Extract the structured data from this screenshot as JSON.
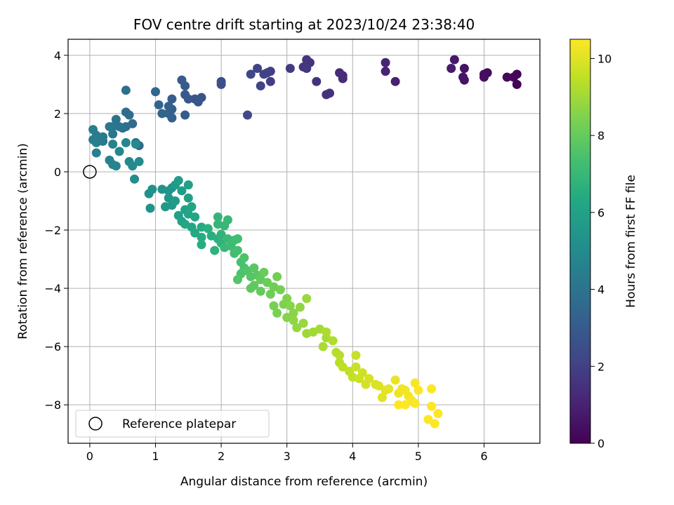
{
  "chart_data": {
    "type": "scatter",
    "title": "FOV centre drift starting at 2023/10/24 23:38:40",
    "xlabel": "Angular distance from reference (arcmin)",
    "ylabel": "Rotation from reference (arcmin)",
    "xlim": [
      -0.33,
      6.85
    ],
    "ylim": [
      -9.32,
      4.55
    ],
    "xticks": [
      0,
      1,
      2,
      3,
      4,
      5,
      6
    ],
    "yticks": [
      -8,
      -6,
      -4,
      -2,
      0,
      2,
      4
    ],
    "grid": true,
    "legend": {
      "placement": "lower-left",
      "entries": [
        "Reference platepar"
      ]
    },
    "reference_point": {
      "x": 0,
      "y": 0,
      "label": "Reference platepar"
    },
    "colorbar": {
      "label": "Hours from first FF file",
      "min": 0,
      "max": 10.5,
      "ticks": [
        0,
        2,
        4,
        6,
        8,
        10
      ],
      "colormap": "viridis"
    },
    "points": [
      [
        6.5,
        3.0,
        0.05
      ],
      [
        6.45,
        3.25,
        0.15
      ],
      [
        6.5,
        3.35,
        0.1
      ],
      [
        6.35,
        3.25,
        0.2
      ],
      [
        6.05,
        3.4,
        0.3
      ],
      [
        6.0,
        3.35,
        0.35
      ],
      [
        6.0,
        3.25,
        0.4
      ],
      [
        5.7,
        3.55,
        0.5
      ],
      [
        5.7,
        3.15,
        0.55
      ],
      [
        5.68,
        3.25,
        0.6
      ],
      [
        5.55,
        3.85,
        0.7
      ],
      [
        5.5,
        3.55,
        0.75
      ],
      [
        4.65,
        3.1,
        0.95
      ],
      [
        4.5,
        3.45,
        1.0
      ],
      [
        4.5,
        3.75,
        1.05
      ],
      [
        3.85,
        3.3,
        1.2
      ],
      [
        3.8,
        3.4,
        1.25
      ],
      [
        3.85,
        3.2,
        1.3
      ],
      [
        3.65,
        2.7,
        1.4
      ],
      [
        3.6,
        2.65,
        1.45
      ],
      [
        3.45,
        3.1,
        1.5
      ],
      [
        3.35,
        3.75,
        1.55
      ],
      [
        3.3,
        3.85,
        1.6
      ],
      [
        3.25,
        3.6,
        1.65
      ],
      [
        3.3,
        3.55,
        1.7
      ],
      [
        3.05,
        3.55,
        1.8
      ],
      [
        2.75,
        3.1,
        1.9
      ],
      [
        2.75,
        3.45,
        1.95
      ],
      [
        2.65,
        3.35,
        2.0
      ],
      [
        2.7,
        3.4,
        2.05
      ],
      [
        2.6,
        2.95,
        2.1
      ],
      [
        2.55,
        3.55,
        2.15
      ],
      [
        2.45,
        3.35,
        2.2
      ],
      [
        2.4,
        1.95,
        2.3
      ],
      [
        2.0,
        3.1,
        2.5
      ],
      [
        2.0,
        3.0,
        2.55
      ],
      [
        1.7,
        2.55,
        2.7
      ],
      [
        1.65,
        2.4,
        2.75
      ],
      [
        1.6,
        2.5,
        2.8
      ],
      [
        1.5,
        2.5,
        2.85
      ],
      [
        1.45,
        2.65,
        2.9
      ],
      [
        1.45,
        2.95,
        2.95
      ],
      [
        1.4,
        3.15,
        3.0
      ],
      [
        1.45,
        1.95,
        3.05
      ],
      [
        1.25,
        2.5,
        3.1
      ],
      [
        1.25,
        2.15,
        3.15
      ],
      [
        1.2,
        2.25,
        3.2
      ],
      [
        1.25,
        1.85,
        3.25
      ],
      [
        1.2,
        2.0,
        3.3
      ],
      [
        1.1,
        2.0,
        3.35
      ],
      [
        1.05,
        2.3,
        3.4
      ],
      [
        1.0,
        2.75,
        3.45
      ],
      [
        0.75,
        0.9,
        3.55
      ],
      [
        0.7,
        1.0,
        3.6
      ],
      [
        0.65,
        1.65,
        3.65
      ],
      [
        0.6,
        1.95,
        3.7
      ],
      [
        0.55,
        2.05,
        3.75
      ],
      [
        0.55,
        2.8,
        3.8
      ],
      [
        0.55,
        1.55,
        3.85
      ],
      [
        0.5,
        1.5,
        3.9
      ],
      [
        0.45,
        1.55,
        3.95
      ],
      [
        0.4,
        1.8,
        4.0
      ],
      [
        0.35,
        1.3,
        4.05
      ],
      [
        0.35,
        1.55,
        4.1
      ],
      [
        0.3,
        1.55,
        4.15
      ],
      [
        0.2,
        1.05,
        4.2
      ],
      [
        0.15,
        1.1,
        4.25
      ],
      [
        0.2,
        1.2,
        4.3
      ],
      [
        0.1,
        1.25,
        4.35
      ],
      [
        0.05,
        1.45,
        4.4
      ],
      [
        0.05,
        1.1,
        4.45
      ],
      [
        0.1,
        1.0,
        4.5
      ],
      [
        0.1,
        0.65,
        4.55
      ],
      [
        0.35,
        0.95,
        4.6
      ],
      [
        0.3,
        0.4,
        4.65
      ],
      [
        0.35,
        0.25,
        4.7
      ],
      [
        0.4,
        0.2,
        4.75
      ],
      [
        0.45,
        0.7,
        4.8
      ],
      [
        0.55,
        1.0,
        4.85
      ],
      [
        0.6,
        0.35,
        4.9
      ],
      [
        0.65,
        0.2,
        4.95
      ],
      [
        0.7,
        0.95,
        5.0
      ],
      [
        0.75,
        0.35,
        5.05
      ],
      [
        0.68,
        -0.25,
        5.1
      ],
      [
        0.9,
        -0.75,
        5.2
      ],
      [
        0.95,
        -0.6,
        5.25
      ],
      [
        0.92,
        -1.25,
        5.3
      ],
      [
        1.1,
        -0.6,
        5.35
      ],
      [
        1.2,
        -0.65,
        5.4
      ],
      [
        1.25,
        -0.55,
        5.45
      ],
      [
        1.2,
        -0.9,
        5.5
      ],
      [
        1.15,
        -1.2,
        5.55
      ],
      [
        1.25,
        -1.15,
        5.6
      ],
      [
        1.3,
        -1.0,
        5.65
      ],
      [
        1.3,
        -0.45,
        5.7
      ],
      [
        1.35,
        -0.3,
        5.75
      ],
      [
        1.4,
        -0.65,
        5.8
      ],
      [
        1.5,
        -0.9,
        5.85
      ],
      [
        1.5,
        -0.45,
        5.9
      ],
      [
        1.35,
        -1.5,
        5.95
      ],
      [
        1.45,
        -1.3,
        6.0
      ],
      [
        1.4,
        -1.7,
        6.05
      ],
      [
        1.5,
        -1.45,
        6.1
      ],
      [
        1.55,
        -1.2,
        6.15
      ],
      [
        1.6,
        -1.55,
        6.2
      ],
      [
        1.45,
        -1.8,
        6.25
      ],
      [
        1.55,
        -1.9,
        6.3
      ],
      [
        1.6,
        -2.1,
        6.35
      ],
      [
        1.7,
        -1.9,
        6.4
      ],
      [
        1.7,
        -2.25,
        6.45
      ],
      [
        1.7,
        -2.5,
        6.5
      ],
      [
        1.85,
        -2.2,
        6.55
      ],
      [
        1.8,
        -1.95,
        6.6
      ],
      [
        1.95,
        -2.3,
        6.65
      ],
      [
        1.9,
        -2.7,
        6.7
      ],
      [
        2.0,
        -2.45,
        6.75
      ],
      [
        2.0,
        -2.15,
        6.8
      ],
      [
        1.95,
        -1.55,
        6.85
      ],
      [
        1.95,
        -1.8,
        6.9
      ],
      [
        2.05,
        -1.85,
        6.95
      ],
      [
        2.1,
        -1.65,
        7.0
      ],
      [
        2.05,
        -2.6,
        7.05
      ],
      [
        2.1,
        -2.3,
        7.1
      ],
      [
        2.15,
        -2.55,
        7.15
      ],
      [
        2.2,
        -2.35,
        7.2
      ],
      [
        2.25,
        -2.3,
        7.25
      ],
      [
        2.2,
        -2.8,
        7.3
      ],
      [
        2.25,
        -2.7,
        7.35
      ],
      [
        2.3,
        -3.1,
        7.4
      ],
      [
        2.35,
        -3.3,
        7.45
      ],
      [
        2.35,
        -2.95,
        7.5
      ],
      [
        2.3,
        -3.5,
        7.55
      ],
      [
        2.4,
        -3.4,
        7.6
      ],
      [
        2.25,
        -3.7,
        7.65
      ],
      [
        2.45,
        -3.6,
        7.7
      ],
      [
        2.5,
        -3.3,
        7.75
      ],
      [
        2.55,
        -3.55,
        7.8
      ],
      [
        2.5,
        -3.9,
        7.85
      ],
      [
        2.45,
        -4.0,
        7.9
      ],
      [
        2.6,
        -3.7,
        7.95
      ],
      [
        2.6,
        -4.1,
        8.0
      ],
      [
        2.65,
        -3.45,
        8.05
      ],
      [
        2.7,
        -3.8,
        8.1
      ],
      [
        2.75,
        -4.2,
        8.15
      ],
      [
        2.8,
        -3.95,
        8.2
      ],
      [
        2.85,
        -3.6,
        8.25
      ],
      [
        2.9,
        -4.05,
        8.3
      ],
      [
        2.8,
        -4.6,
        8.35
      ],
      [
        2.85,
        -4.85,
        8.4
      ],
      [
        2.95,
        -4.55,
        8.45
      ],
      [
        3.0,
        -4.35,
        8.5
      ],
      [
        3.0,
        -5.0,
        8.55
      ],
      [
        3.05,
        -4.6,
        8.6
      ],
      [
        3.1,
        -4.85,
        8.65
      ],
      [
        3.1,
        -5.1,
        8.7
      ],
      [
        3.2,
        -4.65,
        8.75
      ],
      [
        3.15,
        -5.35,
        8.8
      ],
      [
        3.25,
        -5.2,
        8.85
      ],
      [
        3.3,
        -4.35,
        8.9
      ],
      [
        3.3,
        -5.55,
        8.95
      ],
      [
        3.4,
        -5.5,
        9.0
      ],
      [
        3.5,
        -5.4,
        9.05
      ],
      [
        3.6,
        -5.7,
        9.1
      ],
      [
        3.55,
        -6.0,
        9.15
      ],
      [
        3.6,
        -5.5,
        9.2
      ],
      [
        3.7,
        -5.8,
        9.25
      ],
      [
        3.75,
        -6.2,
        9.3
      ],
      [
        3.8,
        -6.3,
        9.35
      ],
      [
        3.8,
        -6.55,
        9.4
      ],
      [
        3.85,
        -6.7,
        9.45
      ],
      [
        3.95,
        -6.85,
        9.5
      ],
      [
        4.0,
        -7.05,
        9.55
      ],
      [
        4.05,
        -6.3,
        9.6
      ],
      [
        4.05,
        -6.7,
        9.65
      ],
      [
        4.1,
        -7.1,
        9.7
      ],
      [
        4.15,
        -6.9,
        9.75
      ],
      [
        4.2,
        -7.3,
        9.8
      ],
      [
        4.25,
        -7.1,
        9.85
      ],
      [
        4.35,
        -7.3,
        9.9
      ],
      [
        4.4,
        -7.35,
        9.95
      ],
      [
        4.45,
        -7.75,
        10.0
      ],
      [
        4.5,
        -7.5,
        10.05
      ],
      [
        4.55,
        -7.45,
        10.1
      ],
      [
        4.65,
        -7.15,
        10.15
      ],
      [
        4.7,
        -7.6,
        10.2
      ],
      [
        4.75,
        -7.45,
        10.25
      ],
      [
        4.8,
        -7.5,
        10.3
      ],
      [
        4.85,
        -7.7,
        10.35
      ],
      [
        4.9,
        -7.85,
        10.4
      ],
      [
        4.95,
        -7.25,
        10.42
      ],
      [
        4.95,
        -7.95,
        10.45
      ],
      [
        5.0,
        -7.5,
        10.47
      ],
      [
        5.15,
        -8.5,
        10.48
      ],
      [
        5.25,
        -8.65,
        10.49
      ],
      [
        5.2,
        -8.05,
        10.5
      ],
      [
        5.2,
        -7.45,
        10.5
      ],
      [
        5.3,
        -8.3,
        10.5
      ],
      [
        4.8,
        -8.0,
        10.5
      ],
      [
        4.7,
        -8.0,
        10.5
      ]
    ]
  }
}
